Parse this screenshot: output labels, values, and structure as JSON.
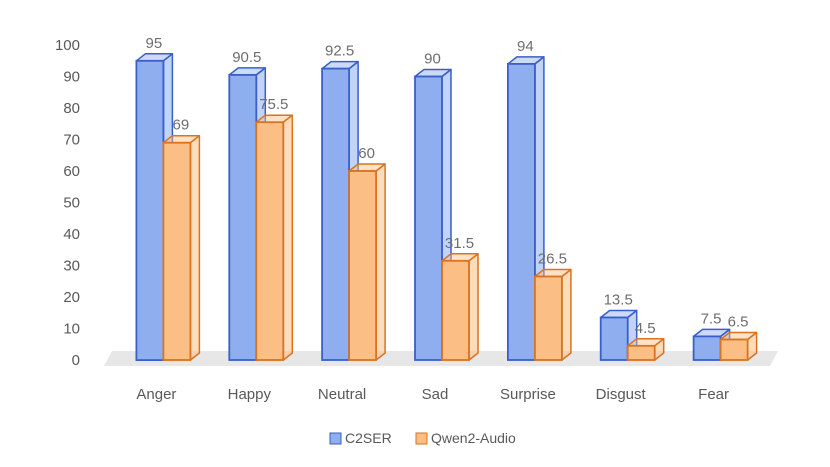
{
  "chart_data": {
    "type": "bar",
    "title": "",
    "xlabel": "",
    "ylabel": "",
    "ylim": [
      0,
      100
    ],
    "yticks": [
      0,
      10,
      20,
      30,
      40,
      50,
      60,
      70,
      80,
      90,
      100
    ],
    "grid": false,
    "legend_position": "bottom",
    "categories": [
      "Anger",
      "Happy",
      "Neutral",
      "Sad",
      "Surprise",
      "Disgust",
      "Fear"
    ],
    "series": [
      {
        "name": "C2SER",
        "values": [
          95,
          90.5,
          92.5,
          90,
          94,
          13.5,
          7.5
        ],
        "labels": [
          "95",
          "90.5",
          "92.5",
          "90",
          "94",
          "13.5",
          "7.5"
        ],
        "color": "#8eaef0",
        "edge": "#3a5fc8"
      },
      {
        "name": "Qwen2-Audio",
        "values": [
          69,
          75.5,
          60,
          31.5,
          26.5,
          4.5,
          6.5
        ],
        "labels": [
          "69",
          "75.5",
          "60",
          "31.5",
          "26.5",
          "4.5",
          "6.5"
        ],
        "color": "#fbbf86",
        "edge": "#d9731f"
      }
    ]
  }
}
